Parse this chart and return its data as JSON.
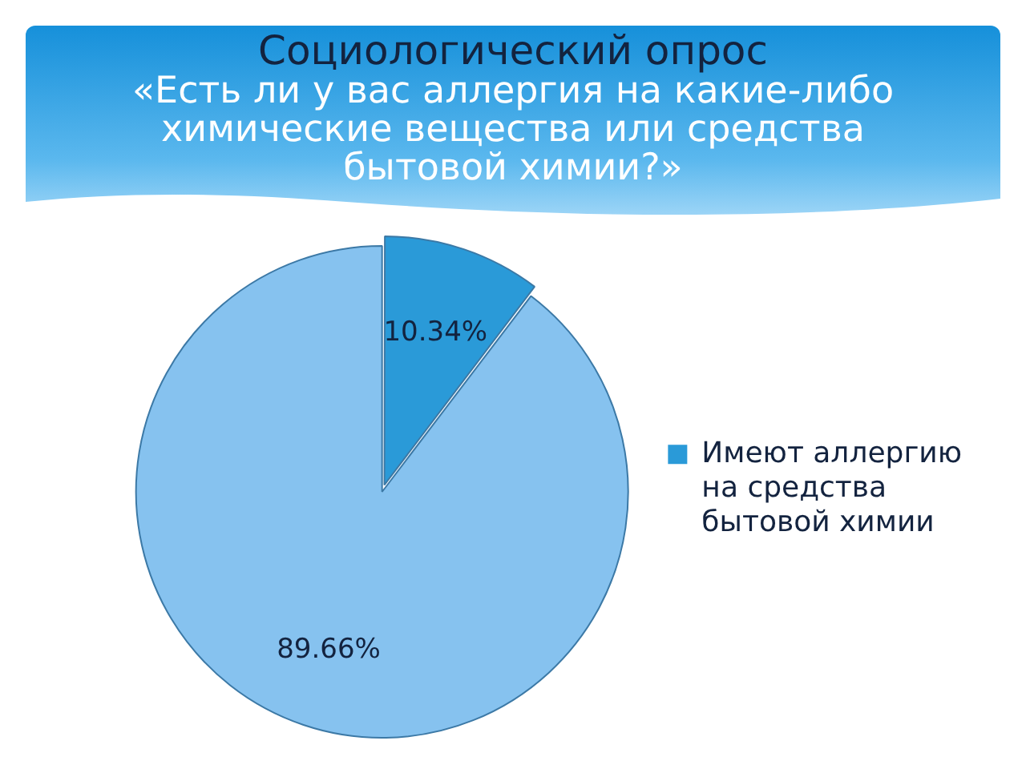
{
  "chart_data": {
    "type": "pie",
    "title": "Социологический опрос",
    "subtitle": "«Есть ли у вас аллергия на какие-либо химические вещества или средства бытовой химии?»",
    "categories": [
      "Имеют аллергию на средства бытовой химии",
      null
    ],
    "values": [
      10.34,
      89.66
    ],
    "colors": [
      "#2a9ad8",
      "#86c2ef"
    ],
    "value_labels": [
      "10.34%",
      "89.66%"
    ],
    "legend": "right"
  }
}
